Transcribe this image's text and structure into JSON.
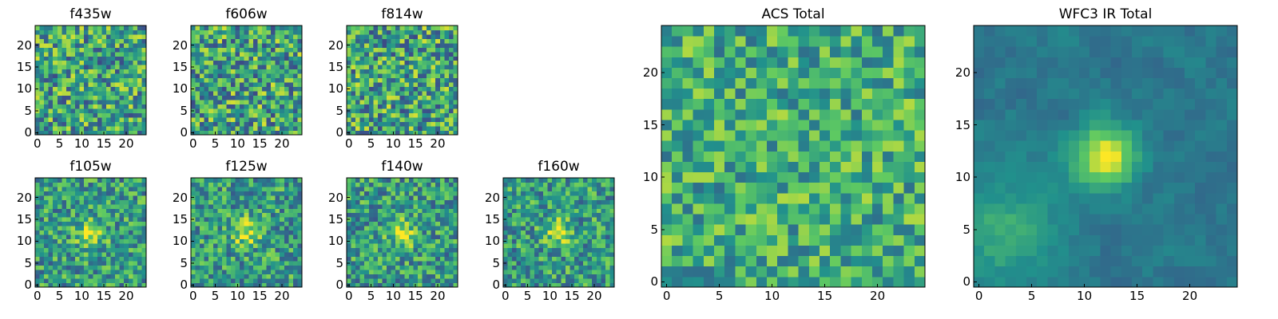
{
  "colormap": [
    "#440154",
    "#3b528b",
    "#21918c",
    "#5ec962",
    "#fde725"
  ],
  "chart_data": [
    {
      "type": "heatmap",
      "id": "f435w",
      "title": "f435w",
      "grid": [
        25,
        25
      ],
      "source": "noise",
      "seed": 11,
      "base": 0.58,
      "spread": 0.35,
      "x_ticks": [
        0,
        5,
        10,
        15,
        20
      ],
      "y_ticks": [
        0,
        5,
        10,
        15,
        20
      ],
      "xlim": [
        -0.5,
        24.5
      ],
      "ylim": [
        -0.5,
        24.5
      ]
    },
    {
      "type": "heatmap",
      "id": "f606w",
      "title": "f606w",
      "grid": [
        25,
        25
      ],
      "source": "noise",
      "seed": 23,
      "base": 0.58,
      "spread": 0.36,
      "x_ticks": [
        0,
        5,
        10,
        15,
        20
      ],
      "y_ticks": [
        0,
        5,
        10,
        15,
        20
      ],
      "xlim": [
        -0.5,
        24.5
      ],
      "ylim": [
        -0.5,
        24.5
      ]
    },
    {
      "type": "heatmap",
      "id": "f814w",
      "title": "f814w",
      "grid": [
        25,
        25
      ],
      "source": "noise",
      "seed": 37,
      "base": 0.58,
      "spread": 0.36,
      "x_ticks": [
        0,
        5,
        10,
        15,
        20
      ],
      "y_ticks": [
        0,
        5,
        10,
        15,
        20
      ],
      "xlim": [
        -0.5,
        24.5
      ],
      "ylim": [
        -0.5,
        24.5
      ]
    },
    {
      "type": "heatmap",
      "id": "f105w",
      "title": "f105w",
      "grid": [
        25,
        25
      ],
      "source": "noise+peak",
      "seed": 41,
      "base": 0.55,
      "spread": 0.28,
      "peak": [
        12,
        12
      ],
      "peak_amp": 0.35,
      "peak_sigma": 2.2,
      "x_ticks": [
        0,
        5,
        10,
        15,
        20
      ],
      "y_ticks": [
        0,
        5,
        10,
        15,
        20
      ],
      "xlim": [
        -0.5,
        24.5
      ],
      "ylim": [
        -0.5,
        24.5
      ]
    },
    {
      "type": "heatmap",
      "id": "f125w",
      "title": "f125w",
      "grid": [
        25,
        25
      ],
      "source": "noise+peak",
      "seed": 53,
      "base": 0.55,
      "spread": 0.28,
      "peak": [
        12,
        12
      ],
      "peak_amp": 0.35,
      "peak_sigma": 2.2,
      "x_ticks": [
        0,
        5,
        10,
        15,
        20
      ],
      "y_ticks": [
        0,
        5,
        10,
        15,
        20
      ],
      "xlim": [
        -0.5,
        24.5
      ],
      "ylim": [
        -0.5,
        24.5
      ]
    },
    {
      "type": "heatmap",
      "id": "f140w",
      "title": "f140w",
      "grid": [
        25,
        25
      ],
      "source": "noise+peak",
      "seed": 67,
      "base": 0.55,
      "spread": 0.28,
      "peak": [
        12,
        12
      ],
      "peak_amp": 0.35,
      "peak_sigma": 2.2,
      "x_ticks": [
        0,
        5,
        10,
        15,
        20
      ],
      "y_ticks": [
        0,
        5,
        10,
        15,
        20
      ],
      "xlim": [
        -0.5,
        24.5
      ],
      "ylim": [
        -0.5,
        24.5
      ]
    },
    {
      "type": "heatmap",
      "id": "f160w",
      "title": "f160w",
      "grid": [
        25,
        25
      ],
      "source": "noise+peak",
      "seed": 79,
      "base": 0.55,
      "spread": 0.28,
      "peak": [
        12,
        12
      ],
      "peak_amp": 0.4,
      "peak_sigma": 2.0,
      "x_ticks": [
        0,
        5,
        10,
        15,
        20
      ],
      "y_ticks": [
        0,
        5,
        10,
        15,
        20
      ],
      "xlim": [
        -0.5,
        24.5
      ],
      "ylim": [
        -0.5,
        24.5
      ]
    },
    {
      "type": "heatmap",
      "id": "acs-total",
      "title": "ACS Total",
      "grid": [
        25,
        25
      ],
      "source": "noise",
      "seed": 97,
      "base": 0.62,
      "spread": 0.26,
      "x_ticks": [
        0,
        5,
        10,
        15,
        20
      ],
      "y_ticks": [
        0,
        5,
        10,
        15,
        20
      ],
      "xlim": [
        -0.5,
        24.5
      ],
      "ylim": [
        -0.5,
        24.5
      ]
    },
    {
      "type": "heatmap",
      "id": "wfc3-ir-total",
      "title": "WFC3 IR Total",
      "grid": [
        25,
        25
      ],
      "source": "smooth+peak",
      "seed": 101,
      "base": 0.4,
      "spread": 0.1,
      "peak": [
        12,
        12
      ],
      "peak_amp": 0.62,
      "peak_sigma": 2.0,
      "glow": [
        2,
        5
      ],
      "glow_amp": 0.22,
      "glow_sigma": 3.5,
      "x_ticks": [
        0,
        5,
        10,
        15,
        20
      ],
      "y_ticks": [
        0,
        5,
        10,
        15,
        20
      ],
      "xlim": [
        -0.5,
        24.5
      ],
      "ylim": [
        -0.5,
        24.5
      ]
    }
  ]
}
